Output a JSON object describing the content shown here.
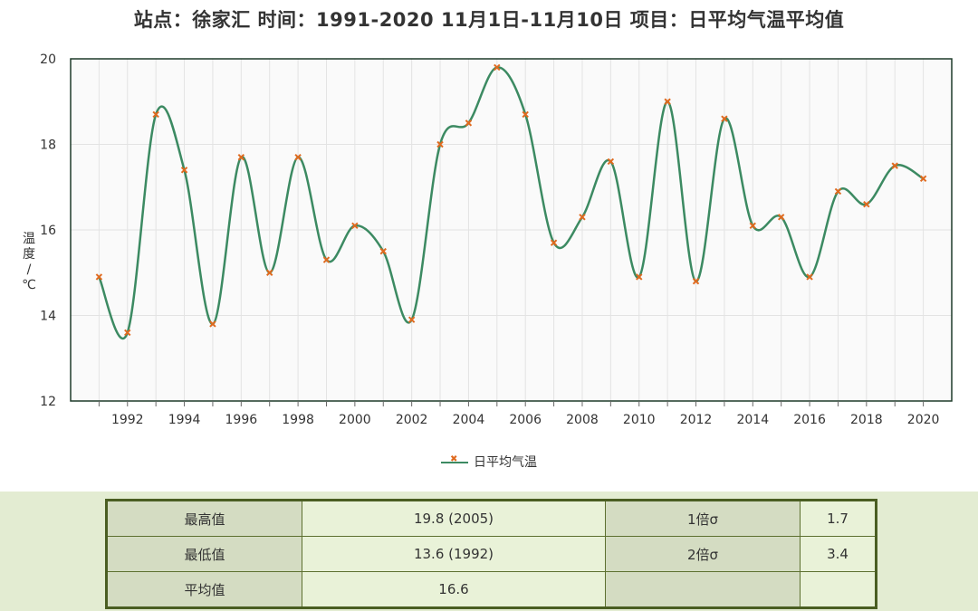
{
  "title": "站点：徐家汇 时间：1991-2020  11月1日-11月10日 项目：日平均气温平均值",
  "colors": {
    "line": "#3c8a62",
    "marker": "#e06a1f",
    "grid": "#e3e3e3",
    "axis": "#1e3b2a",
    "band": "#e3ecd2"
  },
  "chart_data": {
    "type": "line",
    "ylabel": "温度/℃",
    "ylim": [
      12,
      20
    ],
    "yticks": [
      12,
      14,
      16,
      18,
      20
    ],
    "xlim": [
      1990,
      2021
    ],
    "xticks": [
      1992,
      1994,
      1996,
      1998,
      2000,
      2002,
      2004,
      2006,
      2008,
      2010,
      2012,
      2014,
      2016,
      2018,
      2020
    ],
    "grid": true,
    "legend": "bottom-center",
    "series": [
      {
        "name": "日平均气温",
        "x": [
          1991,
          1992,
          1993,
          1994,
          1995,
          1996,
          1997,
          1998,
          1999,
          2000,
          2001,
          2002,
          2003,
          2004,
          2005,
          2006,
          2007,
          2008,
          2009,
          2010,
          2011,
          2012,
          2013,
          2014,
          2015,
          2016,
          2017,
          2018,
          2019,
          2020
        ],
        "values": [
          14.9,
          13.6,
          18.7,
          17.4,
          13.8,
          17.7,
          15.0,
          17.7,
          15.3,
          16.1,
          15.5,
          13.9,
          18.0,
          18.5,
          19.8,
          18.7,
          15.7,
          16.3,
          17.6,
          14.9,
          19.0,
          14.8,
          18.6,
          16.1,
          16.3,
          14.9,
          16.9,
          16.6,
          17.5,
          17.2
        ]
      }
    ]
  },
  "stats_table": {
    "rows": [
      [
        "最高值",
        "19.8 (2005)",
        "1倍σ",
        "1.7"
      ],
      [
        "最低值",
        "13.6 (1992)",
        "2倍σ",
        "3.4"
      ],
      [
        "平均值",
        "16.6",
        "",
        ""
      ]
    ]
  }
}
